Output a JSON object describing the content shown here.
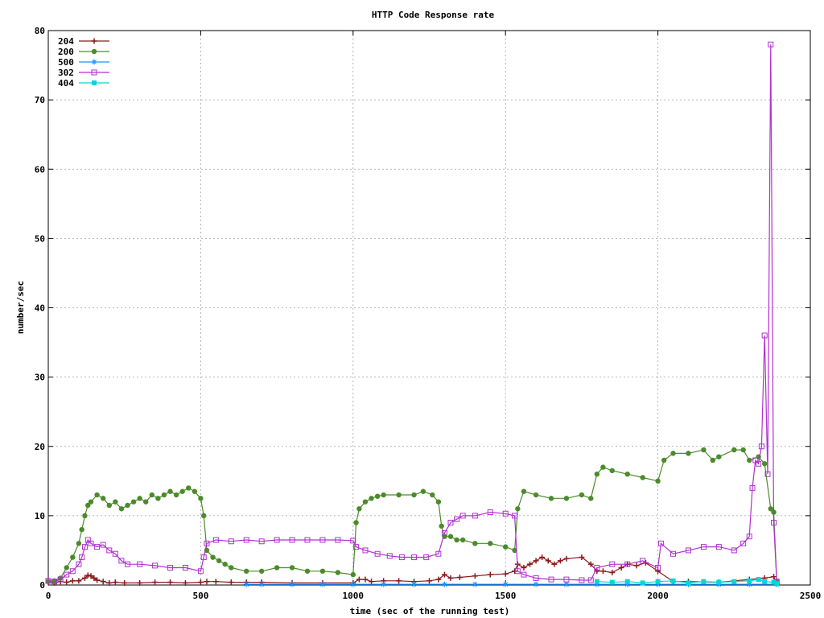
{
  "chart_data": {
    "type": "line",
    "title": "HTTP Code Response rate",
    "xlabel": "time (sec of the running test)",
    "ylabel": "number/sec",
    "xlim": [
      0,
      2500
    ],
    "ylim": [
      0,
      80
    ],
    "x_ticks": [
      0,
      500,
      1000,
      1500,
      2000,
      2500
    ],
    "y_ticks": [
      0,
      10,
      20,
      30,
      40,
      50,
      60,
      70,
      80
    ],
    "grid": true,
    "legend_position": "top-left",
    "series": [
      {
        "name": "204",
        "color": "#8b1a1a",
        "marker": "plus",
        "points": [
          [
            0,
            0.4
          ],
          [
            20,
            0.3
          ],
          [
            40,
            0.5
          ],
          [
            60,
            0.4
          ],
          [
            80,
            0.6
          ],
          [
            100,
            0.6
          ],
          [
            120,
            1.0
          ],
          [
            130,
            1.4
          ],
          [
            140,
            1.3
          ],
          [
            150,
            1.0
          ],
          [
            160,
            0.7
          ],
          [
            180,
            0.5
          ],
          [
            200,
            0.3
          ],
          [
            220,
            0.4
          ],
          [
            250,
            0.3
          ],
          [
            300,
            0.3
          ],
          [
            350,
            0.4
          ],
          [
            400,
            0.4
          ],
          [
            450,
            0.3
          ],
          [
            500,
            0.4
          ],
          [
            520,
            0.5
          ],
          [
            550,
            0.5
          ],
          [
            600,
            0.4
          ],
          [
            650,
            0.4
          ],
          [
            700,
            0.4
          ],
          [
            800,
            0.3
          ],
          [
            900,
            0.3
          ],
          [
            1000,
            0.3
          ],
          [
            1020,
            0.8
          ],
          [
            1040,
            0.8
          ],
          [
            1060,
            0.5
          ],
          [
            1100,
            0.6
          ],
          [
            1150,
            0.6
          ],
          [
            1200,
            0.5
          ],
          [
            1250,
            0.6
          ],
          [
            1280,
            0.8
          ],
          [
            1300,
            1.5
          ],
          [
            1320,
            1.0
          ],
          [
            1350,
            1.1
          ],
          [
            1400,
            1.3
          ],
          [
            1450,
            1.5
          ],
          [
            1500,
            1.6
          ],
          [
            1530,
            2.0
          ],
          [
            1540,
            3.0
          ],
          [
            1560,
            2.5
          ],
          [
            1580,
            3.0
          ],
          [
            1600,
            3.5
          ],
          [
            1620,
            4.0
          ],
          [
            1640,
            3.5
          ],
          [
            1660,
            3.0
          ],
          [
            1680,
            3.5
          ],
          [
            1700,
            3.8
          ],
          [
            1750,
            4.0
          ],
          [
            1780,
            3.0
          ],
          [
            1800,
            2.0
          ],
          [
            1820,
            2.0
          ],
          [
            1850,
            1.8
          ],
          [
            1880,
            2.5
          ],
          [
            1900,
            3.0
          ],
          [
            1930,
            2.8
          ],
          [
            1960,
            3.2
          ],
          [
            2000,
            2.0
          ],
          [
            2050,
            0.5
          ],
          [
            2100,
            0.5
          ],
          [
            2200,
            0.4
          ],
          [
            2300,
            0.8
          ],
          [
            2350,
            1.0
          ],
          [
            2380,
            1.2
          ],
          [
            2390,
            0.2
          ]
        ]
      },
      {
        "name": "200",
        "color": "#4b8b2b",
        "marker": "circle",
        "points": [
          [
            0,
            0.5
          ],
          [
            20,
            0.6
          ],
          [
            40,
            1.0
          ],
          [
            60,
            2.5
          ],
          [
            80,
            4.0
          ],
          [
            100,
            6.0
          ],
          [
            110,
            8.0
          ],
          [
            120,
            10.0
          ],
          [
            130,
            11.5
          ],
          [
            140,
            12.0
          ],
          [
            160,
            13.0
          ],
          [
            180,
            12.5
          ],
          [
            200,
            11.5
          ],
          [
            220,
            12.0
          ],
          [
            240,
            11.0
          ],
          [
            260,
            11.5
          ],
          [
            280,
            12.0
          ],
          [
            300,
            12.5
          ],
          [
            320,
            12.0
          ],
          [
            340,
            13.0
          ],
          [
            360,
            12.5
          ],
          [
            380,
            13.0
          ],
          [
            400,
            13.5
          ],
          [
            420,
            13.0
          ],
          [
            440,
            13.5
          ],
          [
            460,
            14.0
          ],
          [
            480,
            13.5
          ],
          [
            500,
            12.5
          ],
          [
            510,
            10.0
          ],
          [
            520,
            5.0
          ],
          [
            540,
            4.0
          ],
          [
            560,
            3.5
          ],
          [
            580,
            3.0
          ],
          [
            600,
            2.5
          ],
          [
            650,
            2.0
          ],
          [
            700,
            2.0
          ],
          [
            750,
            2.5
          ],
          [
            800,
            2.5
          ],
          [
            850,
            2.0
          ],
          [
            900,
            2.0
          ],
          [
            950,
            1.8
          ],
          [
            1000,
            1.5
          ],
          [
            1010,
            9.0
          ],
          [
            1020,
            11.0
          ],
          [
            1040,
            12.0
          ],
          [
            1060,
            12.5
          ],
          [
            1080,
            12.8
          ],
          [
            1100,
            13.0
          ],
          [
            1150,
            13.0
          ],
          [
            1200,
            13.0
          ],
          [
            1230,
            13.5
          ],
          [
            1260,
            13.0
          ],
          [
            1280,
            12.0
          ],
          [
            1290,
            8.5
          ],
          [
            1300,
            7.0
          ],
          [
            1320,
            7.0
          ],
          [
            1340,
            6.5
          ],
          [
            1360,
            6.5
          ],
          [
            1400,
            6.0
          ],
          [
            1450,
            6.0
          ],
          [
            1500,
            5.5
          ],
          [
            1530,
            5.0
          ],
          [
            1540,
            11.0
          ],
          [
            1560,
            13.5
          ],
          [
            1600,
            13.0
          ],
          [
            1650,
            12.5
          ],
          [
            1700,
            12.5
          ],
          [
            1750,
            13.0
          ],
          [
            1780,
            12.5
          ],
          [
            1800,
            16.0
          ],
          [
            1820,
            17.0
          ],
          [
            1850,
            16.5
          ],
          [
            1900,
            16.0
          ],
          [
            1950,
            15.5
          ],
          [
            2000,
            15.0
          ],
          [
            2020,
            18.0
          ],
          [
            2050,
            19.0
          ],
          [
            2100,
            19.0
          ],
          [
            2150,
            19.5
          ],
          [
            2180,
            18.0
          ],
          [
            2200,
            18.5
          ],
          [
            2250,
            19.5
          ],
          [
            2280,
            19.5
          ],
          [
            2300,
            18.0
          ],
          [
            2330,
            18.5
          ],
          [
            2350,
            17.5
          ],
          [
            2370,
            11.0
          ],
          [
            2380,
            10.5
          ],
          [
            2390,
            0.5
          ]
        ]
      },
      {
        "name": "500",
        "color": "#1e90ff",
        "marker": "asterisk",
        "points": [
          [
            650,
            0.1
          ],
          [
            700,
            0.1
          ],
          [
            800,
            0.1
          ],
          [
            900,
            0.1
          ],
          [
            1000,
            0.1
          ],
          [
            1100,
            0.1
          ],
          [
            1200,
            0.1
          ],
          [
            1300,
            0.1
          ],
          [
            1400,
            0.1
          ],
          [
            1500,
            0.1
          ],
          [
            1600,
            0.1
          ],
          [
            1700,
            0.1
          ],
          [
            1800,
            0.1
          ],
          [
            1900,
            0.1
          ],
          [
            2000,
            0.1
          ],
          [
            2100,
            0.1
          ],
          [
            2200,
            0.1
          ],
          [
            2300,
            0.1
          ],
          [
            2390,
            0.1
          ]
        ]
      },
      {
        "name": "302",
        "color": "#b030d0",
        "marker": "square-open",
        "points": [
          [
            0,
            0.6
          ],
          [
            20,
            0.5
          ],
          [
            40,
            0.8
          ],
          [
            60,
            1.5
          ],
          [
            80,
            2.0
          ],
          [
            100,
            3.0
          ],
          [
            110,
            4.0
          ],
          [
            120,
            5.5
          ],
          [
            130,
            6.5
          ],
          [
            140,
            6.0
          ],
          [
            160,
            5.5
          ],
          [
            180,
            5.8
          ],
          [
            200,
            5.0
          ],
          [
            220,
            4.5
          ],
          [
            240,
            3.5
          ],
          [
            260,
            3.0
          ],
          [
            300,
            3.0
          ],
          [
            350,
            2.8
          ],
          [
            400,
            2.5
          ],
          [
            450,
            2.5
          ],
          [
            500,
            2.0
          ],
          [
            510,
            4.0
          ],
          [
            520,
            6.0
          ],
          [
            550,
            6.5
          ],
          [
            600,
            6.3
          ],
          [
            650,
            6.5
          ],
          [
            700,
            6.3
          ],
          [
            750,
            6.5
          ],
          [
            800,
            6.5
          ],
          [
            850,
            6.5
          ],
          [
            900,
            6.5
          ],
          [
            950,
            6.5
          ],
          [
            1000,
            6.4
          ],
          [
            1010,
            5.5
          ],
          [
            1040,
            5.0
          ],
          [
            1080,
            4.5
          ],
          [
            1120,
            4.2
          ],
          [
            1160,
            4.0
          ],
          [
            1200,
            4.0
          ],
          [
            1240,
            4.0
          ],
          [
            1280,
            4.5
          ],
          [
            1300,
            7.5
          ],
          [
            1320,
            9.0
          ],
          [
            1340,
            9.5
          ],
          [
            1360,
            10.0
          ],
          [
            1400,
            10.0
          ],
          [
            1450,
            10.5
          ],
          [
            1500,
            10.3
          ],
          [
            1530,
            10.0
          ],
          [
            1540,
            2.0
          ],
          [
            1560,
            1.5
          ],
          [
            1600,
            1.0
          ],
          [
            1650,
            0.8
          ],
          [
            1700,
            0.8
          ],
          [
            1750,
            0.7
          ],
          [
            1780,
            0.7
          ],
          [
            1800,
            2.5
          ],
          [
            1850,
            3.0
          ],
          [
            1900,
            3.0
          ],
          [
            1950,
            3.5
          ],
          [
            2000,
            2.5
          ],
          [
            2010,
            6.0
          ],
          [
            2050,
            4.5
          ],
          [
            2100,
            5.0
          ],
          [
            2150,
            5.5
          ],
          [
            2200,
            5.5
          ],
          [
            2250,
            5.0
          ],
          [
            2280,
            6.0
          ],
          [
            2300,
            7.0
          ],
          [
            2310,
            14.0
          ],
          [
            2320,
            18.0
          ],
          [
            2330,
            17.5
          ],
          [
            2340,
            20.0
          ],
          [
            2350,
            36.0
          ],
          [
            2360,
            16.0
          ],
          [
            2370,
            78.0
          ],
          [
            2380,
            9.0
          ],
          [
            2390,
            0.5
          ]
        ]
      },
      {
        "name": "404",
        "color": "#00d8d8",
        "marker": "square-filled",
        "points": [
          [
            1800,
            0.5
          ],
          [
            1850,
            0.4
          ],
          [
            1900,
            0.5
          ],
          [
            1950,
            0.3
          ],
          [
            2000,
            0.5
          ],
          [
            2050,
            0.6
          ],
          [
            2100,
            0.3
          ],
          [
            2150,
            0.5
          ],
          [
            2200,
            0.4
          ],
          [
            2250,
            0.5
          ],
          [
            2300,
            0.6
          ],
          [
            2330,
            0.8
          ],
          [
            2350,
            0.5
          ],
          [
            2380,
            0.4
          ],
          [
            2390,
            0.2
          ]
        ]
      }
    ]
  }
}
